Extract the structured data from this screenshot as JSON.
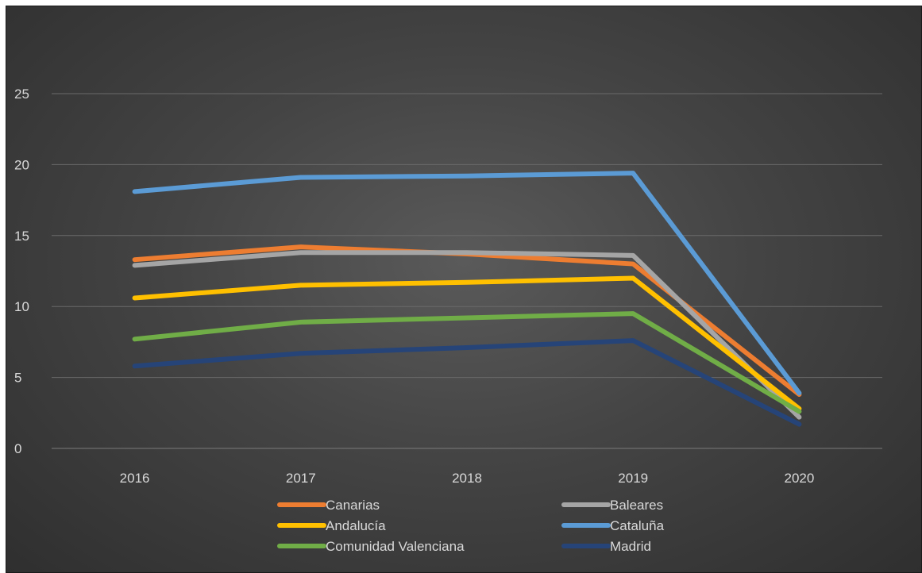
{
  "chart_data": {
    "type": "line",
    "title": "",
    "xlabel": "",
    "ylabel": "",
    "categories": [
      "2016",
      "2017",
      "2018",
      "2019",
      "2020"
    ],
    "ylim": [
      0,
      25
    ],
    "yticks": [
      "0",
      "5",
      "10",
      "15",
      "20",
      "25"
    ],
    "grid": true,
    "legend_position": "bottom",
    "series": [
      {
        "name": "Canarias",
        "color": "#ed7d31",
        "values": [
          13.3,
          14.2,
          13.7,
          13.0,
          3.8
        ]
      },
      {
        "name": "Baleares",
        "color": "#a5a5a5",
        "values": [
          12.9,
          13.8,
          13.8,
          13.6,
          2.2
        ]
      },
      {
        "name": "Andalucía",
        "color": "#ffc000",
        "values": [
          10.6,
          11.5,
          11.7,
          12.0,
          2.8
        ]
      },
      {
        "name": "Cataluña",
        "color": "#5b9bd5",
        "values": [
          18.1,
          19.1,
          19.2,
          19.4,
          3.9
        ]
      },
      {
        "name": "Comunidad Valenciana",
        "color": "#70ad47",
        "values": [
          7.7,
          8.9,
          9.2,
          9.5,
          2.6
        ]
      },
      {
        "name": "Madrid",
        "color": "#264478",
        "values": [
          5.8,
          6.7,
          7.1,
          7.6,
          1.7
        ]
      }
    ]
  }
}
